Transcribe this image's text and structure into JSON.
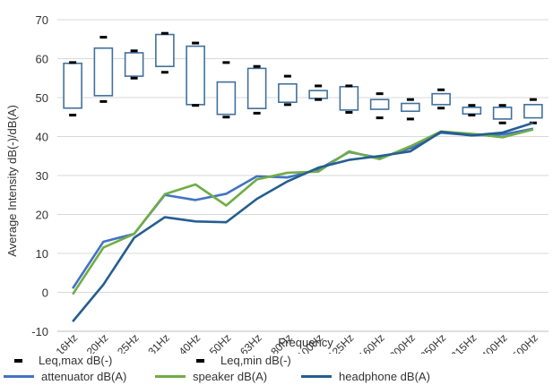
{
  "chart_data": {
    "type": "box+line",
    "xlabel": "Frequency",
    "ylabel": "Average Intensity dB(-)/dB(A)",
    "ylim": [
      -10,
      70
    ],
    "yticks": [
      -10,
      0,
      10,
      20,
      30,
      40,
      50,
      60,
      70
    ],
    "grid": "horizontal",
    "legend_position": "bottom",
    "categories": [
      "16Hz",
      "20Hz",
      "25Hz",
      "31Hz",
      "40Hz",
      "50Hz",
      "63Hz",
      "80Hz",
      "100Hz",
      "125Hz",
      "160Hz",
      "200Hz",
      "250Hz",
      "315Hz",
      "400Hz",
      "500Hz"
    ],
    "boxes": {
      "name_max": "Leq,max dB(-)",
      "name_min": "Leq,min dB(-)",
      "box_color": "#41719c",
      "whisker_top": [
        59,
        65.5,
        62,
        66.5,
        64,
        59,
        58,
        55.5,
        53,
        53,
        51,
        49.5,
        52,
        48,
        48,
        49.5
      ],
      "box_top": [
        58.8,
        62.7,
        61.5,
        66.2,
        63.2,
        54,
        57.5,
        53.5,
        51.8,
        52.8,
        49.5,
        48.5,
        51,
        47.5,
        47.5,
        48.2
      ],
      "box_bottom": [
        47.3,
        50.5,
        55.5,
        58,
        48.2,
        45.7,
        47.2,
        48.8,
        49.8,
        46.8,
        47,
        46.5,
        48.2,
        45.8,
        44.5,
        44.8
      ],
      "whisker_bottom": [
        45.5,
        49,
        55,
        56.5,
        48,
        45,
        46,
        48.2,
        49.5,
        46.2,
        44.8,
        44.5,
        47.3,
        45.5,
        43.5,
        43.5
      ]
    },
    "series": [
      {
        "name": "attenuator dB(A)",
        "color": "#4472c4",
        "values": [
          1,
          13,
          15,
          25,
          23.7,
          25.3,
          29.8,
          29.5,
          31.5,
          36,
          34.5,
          37,
          41,
          40.3,
          40.5,
          42
        ]
      },
      {
        "name": "speaker dB(A)",
        "color": "#70ad47",
        "values": [
          -0.5,
          11.5,
          15,
          25.2,
          27.7,
          22.3,
          29,
          30.7,
          31,
          36.2,
          34.2,
          37.5,
          41.3,
          40.7,
          39.8,
          41.8
        ]
      },
      {
        "name": "headphone dB(A)",
        "color": "#255e91",
        "values": [
          -7.5,
          2,
          14,
          19.3,
          18.2,
          18,
          24,
          28.5,
          32,
          34,
          35,
          36.2,
          41.2,
          40.3,
          41,
          43.5
        ]
      }
    ]
  },
  "legend": {
    "max_label": "Leq,max dB(-)",
    "min_label": "Leq,min dB(-)",
    "attenuator_label": "attenuator dB(A)",
    "speaker_label": "speaker dB(A)",
    "headphone_label": "headphone dB(A)"
  }
}
